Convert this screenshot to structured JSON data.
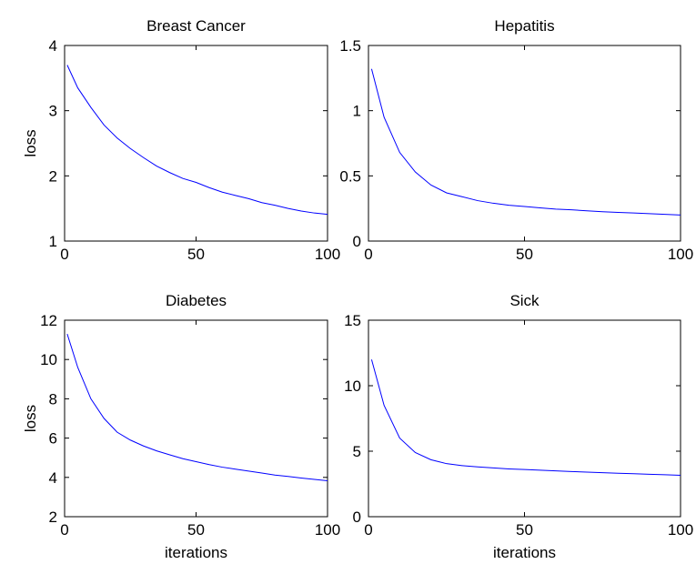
{
  "chart_data": [
    {
      "type": "line",
      "title": "Breast Cancer",
      "ylabel": "loss",
      "color": "#0000ff",
      "x": [
        1,
        5,
        10,
        15,
        20,
        25,
        30,
        35,
        40,
        45,
        50,
        55,
        60,
        65,
        70,
        75,
        80,
        85,
        90,
        95,
        100
      ],
      "values": [
        3.7,
        3.35,
        3.05,
        2.78,
        2.58,
        2.42,
        2.28,
        2.15,
        2.05,
        1.96,
        1.9,
        1.82,
        1.75,
        1.7,
        1.65,
        1.59,
        1.55,
        1.5,
        1.46,
        1.43,
        1.41
      ],
      "xlim": [
        0,
        100
      ],
      "xticks": [
        0,
        50,
        100
      ],
      "ylim": [
        1,
        4
      ],
      "yticks": [
        1,
        2,
        3,
        4
      ]
    },
    {
      "type": "line",
      "title": "Hepatitis",
      "color": "#0000ff",
      "x": [
        1,
        5,
        10,
        15,
        20,
        25,
        30,
        35,
        40,
        45,
        50,
        55,
        60,
        65,
        70,
        75,
        80,
        85,
        90,
        95,
        100
      ],
      "values": [
        1.32,
        0.95,
        0.68,
        0.53,
        0.43,
        0.37,
        0.34,
        0.31,
        0.29,
        0.275,
        0.265,
        0.255,
        0.245,
        0.24,
        0.232,
        0.225,
        0.22,
        0.215,
        0.21,
        0.205,
        0.2
      ],
      "xlim": [
        0,
        100
      ],
      "xticks": [
        0,
        50,
        100
      ],
      "ylim": [
        0,
        1.5
      ],
      "yticks": [
        0,
        0.5,
        1,
        1.5
      ]
    },
    {
      "type": "line",
      "title": "Diabetes",
      "ylabel": "loss",
      "xlabel": "iterations",
      "color": "#0000ff",
      "x": [
        1,
        5,
        10,
        15,
        20,
        25,
        30,
        35,
        40,
        45,
        50,
        55,
        60,
        65,
        70,
        75,
        80,
        85,
        90,
        95,
        100
      ],
      "values": [
        11.3,
        9.6,
        8.0,
        7.0,
        6.3,
        5.9,
        5.6,
        5.35,
        5.15,
        4.95,
        4.8,
        4.65,
        4.52,
        4.42,
        4.32,
        4.22,
        4.12,
        4.05,
        3.97,
        3.9,
        3.83
      ],
      "xlim": [
        0,
        100
      ],
      "xticks": [
        0,
        50,
        100
      ],
      "ylim": [
        2,
        12
      ],
      "yticks": [
        2,
        4,
        6,
        8,
        10,
        12
      ]
    },
    {
      "type": "line",
      "title": "Sick",
      "xlabel": "iterations",
      "color": "#0000ff",
      "x": [
        1,
        5,
        10,
        15,
        20,
        25,
        30,
        35,
        40,
        45,
        50,
        55,
        60,
        65,
        70,
        75,
        80,
        85,
        90,
        95,
        100
      ],
      "values": [
        12,
        8.5,
        6.0,
        4.9,
        4.35,
        4.05,
        3.9,
        3.8,
        3.72,
        3.65,
        3.6,
        3.55,
        3.5,
        3.45,
        3.4,
        3.36,
        3.32,
        3.28,
        3.24,
        3.2,
        3.16
      ],
      "xlim": [
        0,
        100
      ],
      "xticks": [
        0,
        50,
        100
      ],
      "ylim": [
        0,
        15
      ],
      "yticks": [
        0,
        5,
        10,
        15
      ]
    }
  ]
}
